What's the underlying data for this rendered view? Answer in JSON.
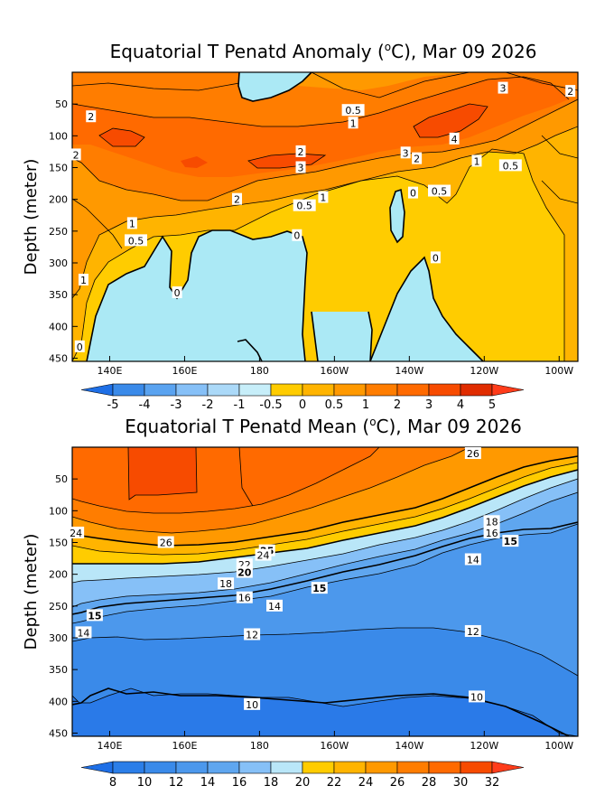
{
  "chart_data": [
    {
      "type": "heatmap",
      "title": "Equatorial T Penatd Anomaly (°C), Mar 09 2026",
      "title_text": "Equatorial T Penatd Anomaly (",
      "title_deg": "o",
      "title_tail": "C), Mar 09 2026",
      "ylabel": "Depth (meter)",
      "xlabel": "",
      "xlim": [
        130,
        265
      ],
      "ylim": [
        455,
        0
      ],
      "x_ticks": [
        {
          "lon": 140,
          "label": "140E"
        },
        {
          "lon": 160,
          "label": "160E"
        },
        {
          "lon": 180,
          "label": "180"
        },
        {
          "lon": 200,
          "label": "160W"
        },
        {
          "lon": 220,
          "label": "140W"
        },
        {
          "lon": 240,
          "label": "120W"
        },
        {
          "lon": 260,
          "label": "100W"
        }
      ],
      "y_ticks": [
        {
          "depth": 50,
          "label": "50"
        },
        {
          "depth": 100,
          "label": "100"
        },
        {
          "depth": 150,
          "label": "150"
        },
        {
          "depth": 200,
          "label": "200"
        },
        {
          "depth": 250,
          "label": "250"
        },
        {
          "depth": 300,
          "label": "300"
        },
        {
          "depth": 350,
          "label": "350"
        },
        {
          "depth": 400,
          "label": "400"
        },
        {
          "depth": 450,
          "label": "450"
        }
      ],
      "colorbar": {
        "labels": [
          "-5",
          "-4",
          "-3",
          "-2",
          "-1",
          "-0.5",
          "0",
          "0.5",
          "1",
          "2",
          "3",
          "4",
          "5"
        ],
        "colors": [
          "#1e6fe6",
          "#3a8ae9",
          "#5aa3f0",
          "#86c0f7",
          "#abd9f8",
          "#c7eef9",
          "#ffcc00",
          "#ffb400",
          "#ff9900",
          "#ff7d00",
          "#ff6a00",
          "#f74b00",
          "#e02c00",
          "#ff3c1a"
        ]
      },
      "contour_labels": [
        {
          "text": "2",
          "lon": 135,
          "depth": 70
        },
        {
          "text": "0.5",
          "lon": 205,
          "depth": 60
        },
        {
          "text": "1",
          "lon": 205,
          "depth": 80
        },
        {
          "text": "3",
          "lon": 245,
          "depth": 25
        },
        {
          "text": "2",
          "lon": 263,
          "depth": 30
        },
        {
          "text": "4",
          "lon": 232,
          "depth": 105
        },
        {
          "text": "2",
          "lon": 131,
          "depth": 130
        },
        {
          "text": "2",
          "lon": 191,
          "depth": 125
        },
        {
          "text": "3",
          "lon": 191,
          "depth": 150
        },
        {
          "text": "3",
          "lon": 219,
          "depth": 127
        },
        {
          "text": "2",
          "lon": 222,
          "depth": 136
        },
        {
          "text": "1",
          "lon": 238,
          "depth": 140
        },
        {
          "text": "0.5",
          "lon": 247,
          "depth": 147
        },
        {
          "text": "2",
          "lon": 174,
          "depth": 200
        },
        {
          "text": "1",
          "lon": 197,
          "depth": 197
        },
        {
          "text": "0.5",
          "lon": 192,
          "depth": 210
        },
        {
          "text": "0",
          "lon": 221,
          "depth": 190
        },
        {
          "text": "0.5",
          "lon": 228,
          "depth": 187
        },
        {
          "text": "1",
          "lon": 146,
          "depth": 238
        },
        {
          "text": "0.5",
          "lon": 147,
          "depth": 265
        },
        {
          "text": "0",
          "lon": 190,
          "depth": 257
        },
        {
          "text": "1",
          "lon": 133,
          "depth": 327
        },
        {
          "text": "0",
          "lon": 158,
          "depth": 347
        },
        {
          "text": "0",
          "lon": 227,
          "depth": 292
        },
        {
          "text": "0",
          "lon": 132,
          "depth": 432
        }
      ]
    },
    {
      "type": "heatmap",
      "title": "Equatorial T Penatd Mean (°C), Mar 09 2026",
      "title_text": "Equatorial T Penatd Mean (",
      "title_deg": "o",
      "title_tail": "C), Mar 09 2026",
      "ylabel": "Depth (meter)",
      "xlabel": "",
      "xlim": [
        130,
        265
      ],
      "ylim": [
        455,
        0
      ],
      "x_ticks": [
        {
          "lon": 140,
          "label": "140E"
        },
        {
          "lon": 160,
          "label": "160E"
        },
        {
          "lon": 180,
          "label": "180"
        },
        {
          "lon": 200,
          "label": "160W"
        },
        {
          "lon": 220,
          "label": "140W"
        },
        {
          "lon": 240,
          "label": "120W"
        },
        {
          "lon": 260,
          "label": "100W"
        }
      ],
      "y_ticks": [
        {
          "depth": 50,
          "label": "50"
        },
        {
          "depth": 100,
          "label": "100"
        },
        {
          "depth": 150,
          "label": "150"
        },
        {
          "depth": 200,
          "label": "200"
        },
        {
          "depth": 250,
          "label": "250"
        },
        {
          "depth": 300,
          "label": "300"
        },
        {
          "depth": 350,
          "label": "350"
        },
        {
          "depth": 400,
          "label": "400"
        },
        {
          "depth": 450,
          "label": "450"
        }
      ],
      "colorbar": {
        "labels": [
          "8",
          "10",
          "12",
          "14",
          "16",
          "18",
          "20",
          "22",
          "24",
          "26",
          "28",
          "30",
          "32"
        ],
        "colors": [
          "#1e6fe6",
          "#2b7ee8",
          "#3a8ae9",
          "#4c98ec",
          "#5fa6ef",
          "#86c0f7",
          "#b9e6f8",
          "#ffcc00",
          "#ffb400",
          "#ff9900",
          "#ff7d00",
          "#ff6a00",
          "#f74b00",
          "#ff3c1a"
        ]
      },
      "contour_labels": [
        {
          "text": "26",
          "lon": 237,
          "depth": 10
        },
        {
          "text": "24",
          "lon": 131,
          "depth": 135
        },
        {
          "text": "26",
          "lon": 155,
          "depth": 150
        },
        {
          "text": "25",
          "lon": 182,
          "depth": 163,
          "bold": true
        },
        {
          "text": "24",
          "lon": 181,
          "depth": 170
        },
        {
          "text": "22",
          "lon": 176,
          "depth": 185
        },
        {
          "text": "20",
          "lon": 176,
          "depth": 197,
          "bold": true
        },
        {
          "text": "18",
          "lon": 171,
          "depth": 215
        },
        {
          "text": "16",
          "lon": 176,
          "depth": 237
        },
        {
          "text": "15",
          "lon": 196,
          "depth": 222,
          "bold": true
        },
        {
          "text": "14",
          "lon": 184,
          "depth": 250
        },
        {
          "text": "18",
          "lon": 242,
          "depth": 117
        },
        {
          "text": "16",
          "lon": 242,
          "depth": 135
        },
        {
          "text": "15",
          "lon": 247,
          "depth": 148,
          "bold": true
        },
        {
          "text": "14",
          "lon": 237,
          "depth": 177
        },
        {
          "text": "15",
          "lon": 136,
          "depth": 265,
          "bold": true
        },
        {
          "text": "14",
          "lon": 133,
          "depth": 292
        },
        {
          "text": "12",
          "lon": 178,
          "depth": 295
        },
        {
          "text": "12",
          "lon": 237,
          "depth": 290
        },
        {
          "text": "10",
          "lon": 178,
          "depth": 405
        },
        {
          "text": "10",
          "lon": 238,
          "depth": 393
        }
      ]
    }
  ]
}
